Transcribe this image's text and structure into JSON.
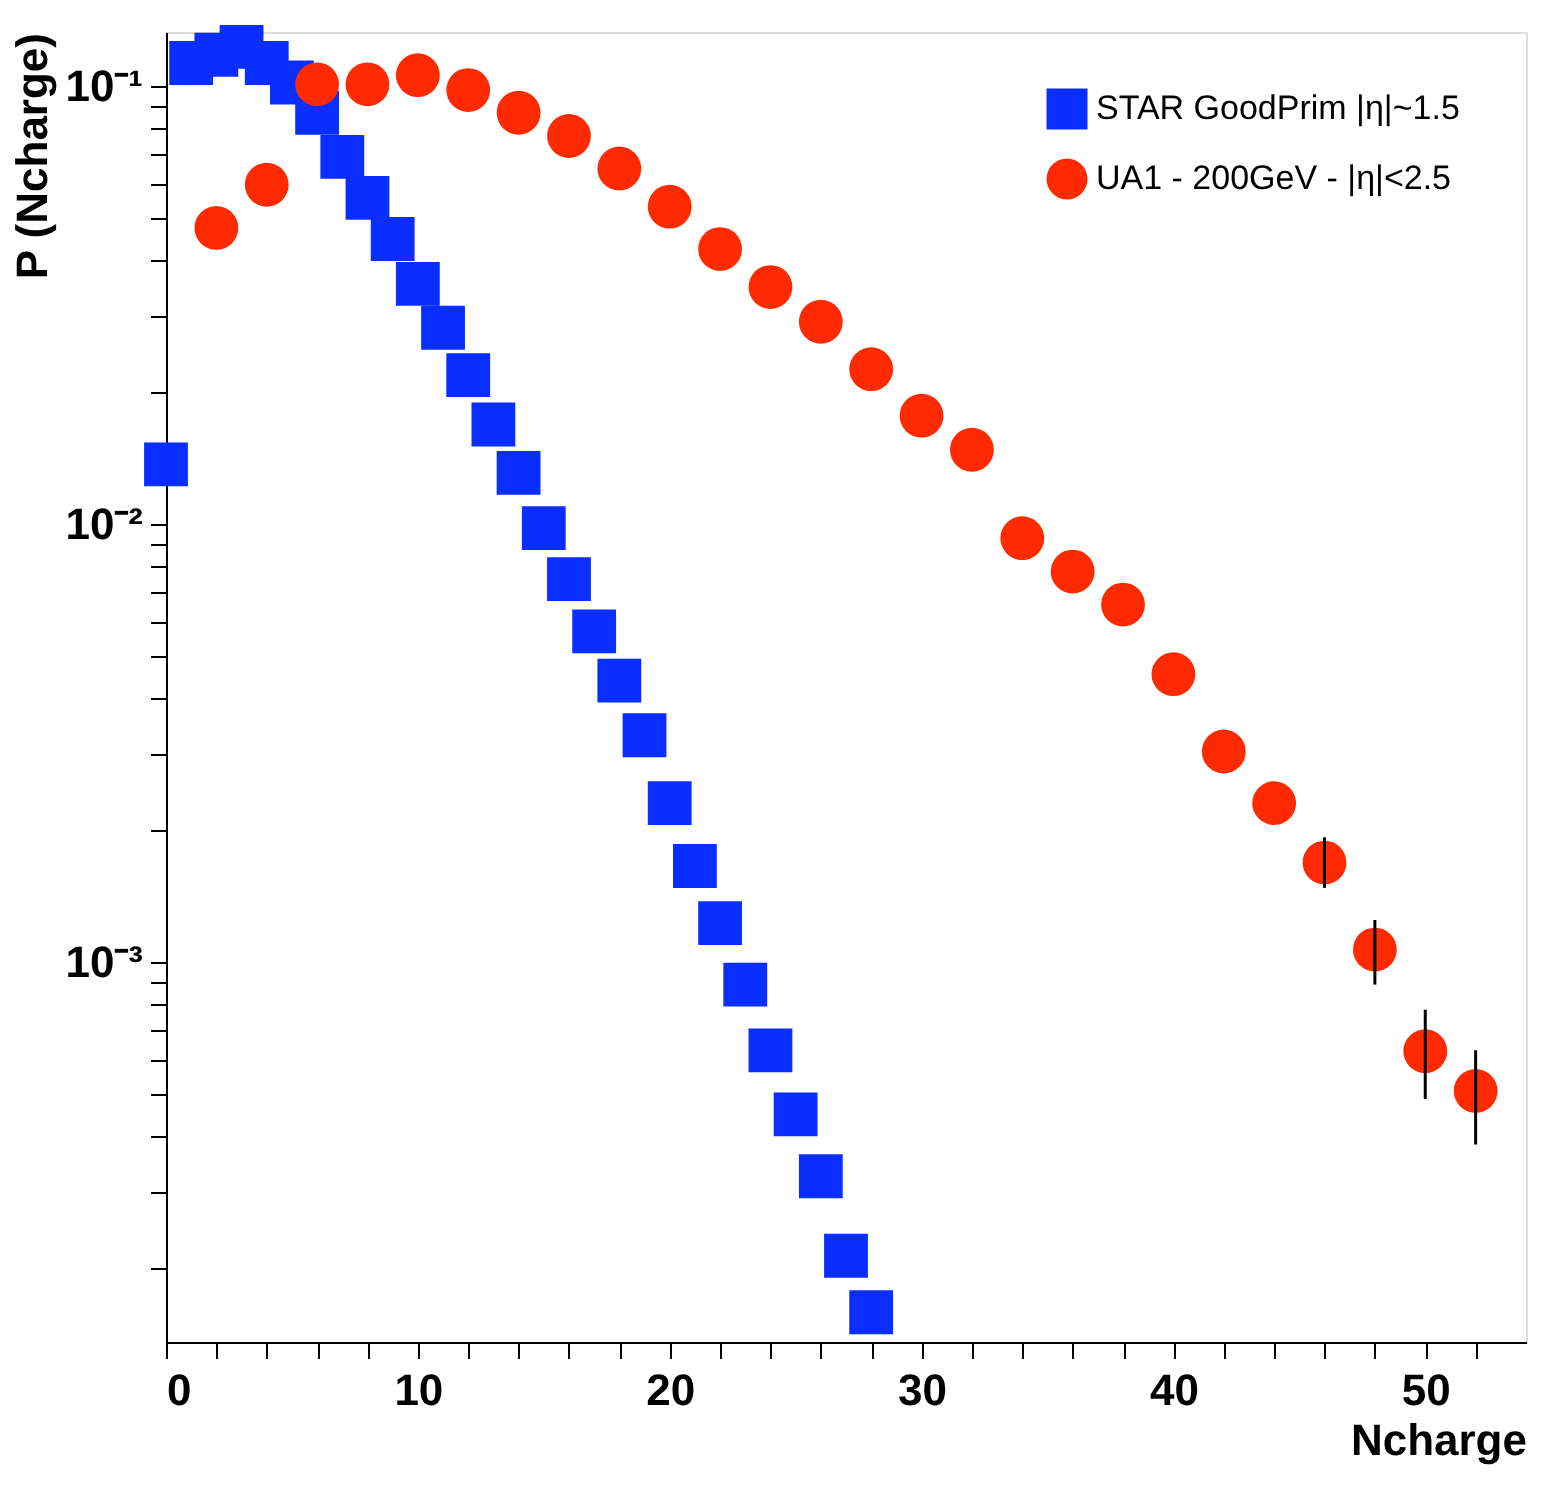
{
  "chart_data": {
    "type": "scatter",
    "xlabel": "Ncharge",
    "ylabel": "P (Ncharge)",
    "log": "y",
    "grid": false,
    "legend": "top right",
    "xlim": [
      0,
      54
    ],
    "ylim": [
      0.000136,
      0.133
    ],
    "xticks": [
      0,
      {
        "value": 2,
        "label": null
      },
      {
        "value": 4,
        "label": null
      },
      {
        "value": 6,
        "label": null
      },
      {
        "value": 8,
        "label": null
      },
      10,
      {
        "value": 12,
        "label": null
      },
      {
        "value": 14,
        "label": null
      },
      {
        "value": 16,
        "label": null
      },
      {
        "value": 18,
        "label": null
      },
      20,
      {
        "value": 22,
        "label": null
      },
      {
        "value": 24,
        "label": null
      },
      {
        "value": 26,
        "label": null
      },
      {
        "value": 28,
        "label": null
      },
      30,
      {
        "value": 32,
        "label": null
      },
      {
        "value": 34,
        "label": null
      },
      {
        "value": 36,
        "label": null
      },
      {
        "value": 38,
        "label": null
      },
      40,
      {
        "value": 42,
        "label": null
      },
      {
        "value": 44,
        "label": null
      },
      {
        "value": 46,
        "label": null
      },
      {
        "value": 48,
        "label": null
      },
      50,
      {
        "value": 52,
        "label": null
      }
    ],
    "yticks": [
      {
        "value": 0.0002,
        "label": null
      },
      {
        "value": 0.0003,
        "label": null
      },
      {
        "value": 0.0004,
        "label": null
      },
      {
        "value": 0.0005,
        "label": null
      },
      {
        "value": 0.0006,
        "label": null
      },
      {
        "value": 0.0007,
        "label": null
      },
      {
        "value": 0.0008,
        "label": null
      },
      {
        "value": 0.0009,
        "label": null
      },
      {
        "value": 0.001,
        "label": "10⁻³"
      },
      {
        "value": 0.002,
        "label": null
      },
      {
        "value": 0.003,
        "label": null
      },
      {
        "value": 0.004,
        "label": null
      },
      {
        "value": 0.005,
        "label": null
      },
      {
        "value": 0.006,
        "label": null
      },
      {
        "value": 0.007,
        "label": null
      },
      {
        "value": 0.008,
        "label": null
      },
      {
        "value": 0.009,
        "label": null
      },
      {
        "value": 0.01,
        "label": "10⁻²"
      },
      {
        "value": 0.02,
        "label": null
      },
      {
        "value": 0.03,
        "label": null
      },
      {
        "value": 0.04,
        "label": null
      },
      {
        "value": 0.05,
        "label": null
      },
      {
        "value": 0.06,
        "label": null
      },
      {
        "value": 0.07,
        "label": null
      },
      {
        "value": 0.08,
        "label": null
      },
      {
        "value": 0.09,
        "label": null
      },
      {
        "value": 0.1,
        "label": "10⁻¹"
      }
    ],
    "series": [
      {
        "name": "STAR GoodPrim  |η|~1.5",
        "color": "#0a2eff",
        "marker": "square",
        "x": [
          0,
          1,
          2,
          3,
          4,
          5,
          6,
          7,
          8,
          9,
          10,
          11,
          12,
          13,
          14,
          15,
          16,
          17,
          18,
          19,
          20,
          21,
          22,
          23,
          24,
          25,
          26,
          27,
          28
        ],
        "values": [
          0.0137,
          0.113,
          0.118,
          0.123,
          0.113,
          0.102,
          0.087,
          0.069,
          0.0556,
          0.0448,
          0.0354,
          0.0281,
          0.0219,
          0.0169,
          0.0131,
          0.0098,
          0.0075,
          0.0057,
          0.0044,
          0.0033,
          0.00231,
          0.00166,
          0.00123,
          0.00089,
          0.00063,
          0.00045,
          0.000325,
          0.000214,
          0.000159
        ]
      },
      {
        "name": "UA1 - 200GeV - |η|<2.5",
        "color": "#ff2a00",
        "marker": "circle",
        "x": [
          2,
          4,
          6,
          8,
          10,
          12,
          14,
          16,
          18,
          20,
          22,
          24,
          26,
          28,
          30,
          32,
          34,
          36,
          38,
          40,
          42,
          44,
          46,
          48,
          50,
          52
        ],
        "values": [
          0.0475,
          0.0596,
          0.101,
          0.101,
          0.106,
          0.098,
          0.087,
          0.077,
          0.0649,
          0.0531,
          0.0425,
          0.0348,
          0.029,
          0.0226,
          0.0177,
          0.0148,
          0.0093,
          0.0078,
          0.00656,
          0.00455,
          0.00303,
          0.00231,
          0.00169,
          0.00107,
          0.000627,
          0.000509
        ],
        "errors": [
          null,
          null,
          null,
          null,
          null,
          null,
          null,
          null,
          null,
          null,
          null,
          null,
          null,
          null,
          null,
          null,
          null,
          null,
          null,
          null,
          null,
          null,
          [
            0.00148,
            0.00193
          ],
          [
            0.00089,
            0.00125
          ],
          [
            0.000488,
            0.00078
          ],
          [
            0.000384,
            0.00063
          ]
        ]
      }
    ]
  }
}
